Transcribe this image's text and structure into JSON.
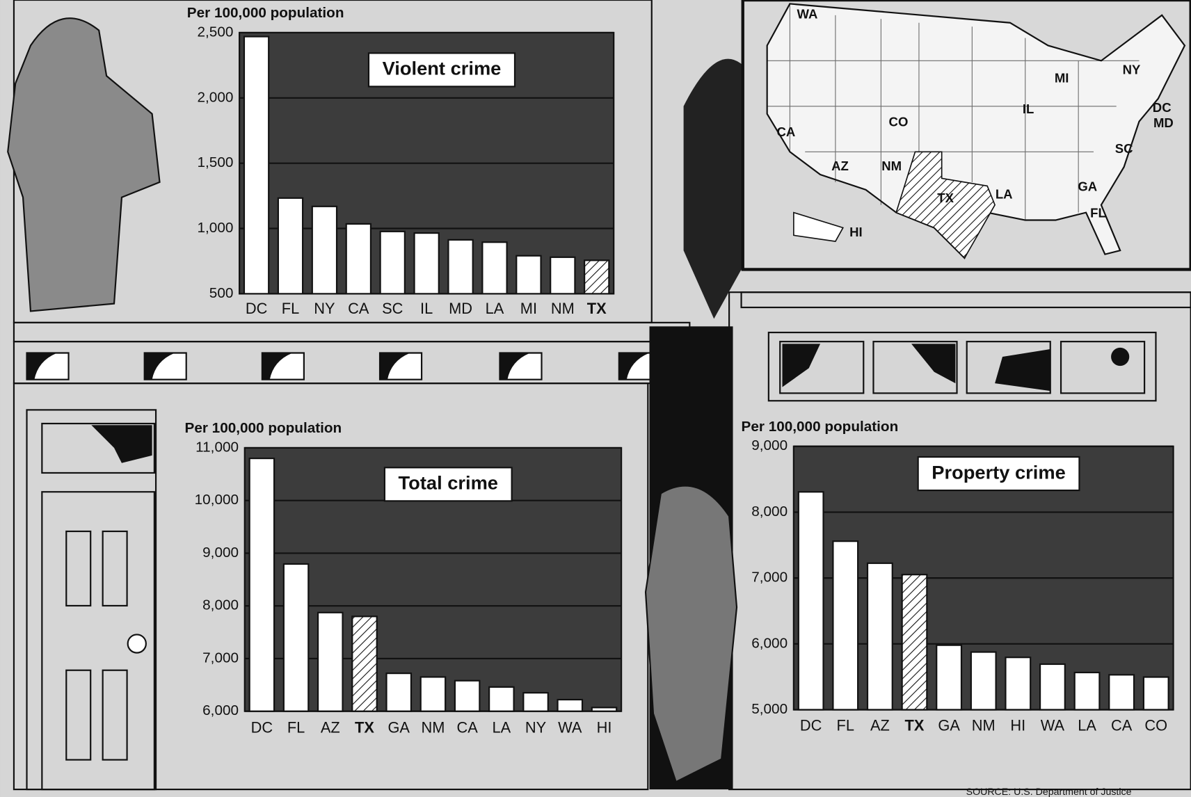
{
  "chart_data": [
    {
      "type": "bar",
      "title": "Violent crime",
      "y_label": "Per 100,000 population",
      "categories": [
        "DC",
        "FL",
        "NY",
        "CA",
        "SC",
        "IL",
        "MD",
        "LA",
        "MI",
        "NM",
        "TX"
      ],
      "values": [
        2470,
        1233,
        1169,
        1035,
        977,
        965,
        913,
        895,
        791,
        780,
        756
      ],
      "ylim": [
        500,
        2500
      ],
      "yticks": [
        500,
        {
          "value": 1000,
          "label": "1,000"
        },
        {
          "value": 1500,
          "label": "1,500"
        },
        {
          "value": 2000,
          "label": "2,000"
        },
        {
          "value": 2500,
          "label": "2,500"
        }
      ],
      "grid": true,
      "color": "#ffffff",
      "hatched_category": "TX"
    },
    {
      "type": "bar",
      "title": "Total crime",
      "y_label": "Per 100,000 population",
      "categories": [
        "DC",
        "FL",
        "AZ",
        "TX",
        "GA",
        "NM",
        "CA",
        "LA",
        "NY",
        "WA",
        "HI"
      ],
      "values": [
        10800,
        8795,
        7873,
        7800,
        6720,
        6650,
        6580,
        6460,
        6350,
        6220,
        6070
      ],
      "ylim": [
        6000,
        11000
      ],
      "yticks": [
        {
          "value": 6000,
          "label": "6,000"
        },
        {
          "value": 7000,
          "label": "7,000"
        },
        {
          "value": 8000,
          "label": "8,000"
        },
        {
          "value": 9000,
          "label": "9,000"
        },
        {
          "value": 10000,
          "label": "10,000"
        },
        {
          "value": 11000,
          "label": "11,000"
        }
      ],
      "grid": true,
      "color": "#ffffff",
      "hatched_category": "TX"
    },
    {
      "type": "bar",
      "title": "Property crime",
      "y_label": "Per 100,000 population",
      "categories": [
        "DC",
        "FL",
        "AZ",
        "TX",
        "GA",
        "NM",
        "HI",
        "WA",
        "LA",
        "CA",
        "CO"
      ],
      "values": [
        8308,
        7559,
        7225,
        7052,
        5980,
        5876,
        5795,
        5692,
        5565,
        5530,
        5496
      ],
      "ylim": [
        5000,
        9000
      ],
      "yticks": [
        {
          "value": 5000,
          "label": "5,000"
        },
        {
          "value": 6000,
          "label": "6,000"
        },
        {
          "value": 7000,
          "label": "7,000"
        },
        {
          "value": 8000,
          "label": "8,000"
        },
        {
          "value": 9000,
          "label": "9,000"
        }
      ],
      "grid": true,
      "color": "#ffffff",
      "hatched_category": "TX"
    }
  ],
  "map": {
    "labels": [
      "WA",
      "CA",
      "CO",
      "AZ",
      "NM",
      "TX",
      "HI",
      "MI",
      "IL",
      "NY",
      "DC",
      "MD",
      "SC",
      "GA",
      "FL",
      "LA"
    ]
  },
  "source": "SOURCE: U.S. Department of Justice"
}
